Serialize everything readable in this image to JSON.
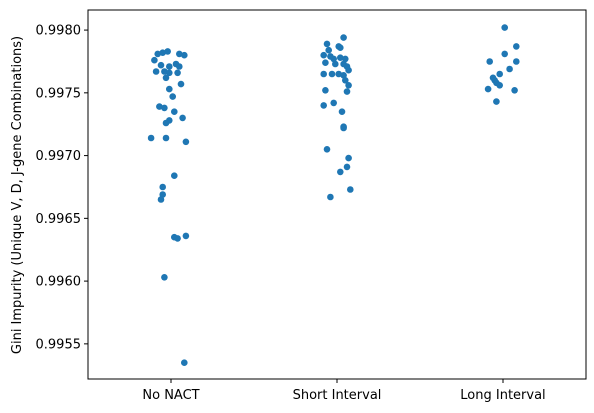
{
  "chart_data": {
    "type": "scatter",
    "title": "",
    "xlabel": "",
    "ylabel": "Gini Impurity (Unique V, D, J-gene Combinations)",
    "categories": [
      "No NACT",
      "Short Interval",
      "Long Interval"
    ],
    "ylim": [
      0.99522,
      0.99816
    ],
    "yticks": [
      0.9955,
      0.996,
      0.9965,
      0.997,
      0.9975,
      0.998
    ],
    "ytick_labels": [
      "0.9955",
      "0.9960",
      "0.9965",
      "0.9970",
      "0.9975",
      "0.9980"
    ],
    "grid": false,
    "legend": "none",
    "marker_color": "#1f77b4",
    "points": [
      {
        "category": "No NACT",
        "jitter": -0.1,
        "y": 0.99776
      },
      {
        "category": "No NACT",
        "jitter": -0.08,
        "y": 0.99781
      },
      {
        "category": "No NACT",
        "jitter": -0.05,
        "y": 0.99782
      },
      {
        "category": "No NACT",
        "jitter": -0.02,
        "y": 0.99783
      },
      {
        "category": "No NACT",
        "jitter": 0.05,
        "y": 0.99781
      },
      {
        "category": "No NACT",
        "jitter": 0.08,
        "y": 0.9978
      },
      {
        "category": "No NACT",
        "jitter": -0.06,
        "y": 0.99772
      },
      {
        "category": "No NACT",
        "jitter": -0.01,
        "y": 0.99771
      },
      {
        "category": "No NACT",
        "jitter": 0.03,
        "y": 0.99773
      },
      {
        "category": "No NACT",
        "jitter": 0.05,
        "y": 0.99771
      },
      {
        "category": "No NACT",
        "jitter": -0.09,
        "y": 0.99767
      },
      {
        "category": "No NACT",
        "jitter": -0.04,
        "y": 0.99767
      },
      {
        "category": "No NACT",
        "jitter": -0.01,
        "y": 0.99766
      },
      {
        "category": "No NACT",
        "jitter": 0.04,
        "y": 0.99766
      },
      {
        "category": "No NACT",
        "jitter": -0.03,
        "y": 0.99762
      },
      {
        "category": "No NACT",
        "jitter": 0.06,
        "y": 0.99757
      },
      {
        "category": "No NACT",
        "jitter": -0.01,
        "y": 0.99753
      },
      {
        "category": "No NACT",
        "jitter": 0.01,
        "y": 0.99747
      },
      {
        "category": "No NACT",
        "jitter": -0.07,
        "y": 0.99739
      },
      {
        "category": "No NACT",
        "jitter": -0.04,
        "y": 0.99738
      },
      {
        "category": "No NACT",
        "jitter": 0.02,
        "y": 0.99735
      },
      {
        "category": "No NACT",
        "jitter": 0.07,
        "y": 0.9973
      },
      {
        "category": "No NACT",
        "jitter": -0.01,
        "y": 0.99728
      },
      {
        "category": "No NACT",
        "jitter": -0.03,
        "y": 0.99726
      },
      {
        "category": "No NACT",
        "jitter": -0.12,
        "y": 0.99714
      },
      {
        "category": "No NACT",
        "jitter": -0.03,
        "y": 0.99714
      },
      {
        "category": "No NACT",
        "jitter": 0.09,
        "y": 0.99711
      },
      {
        "category": "No NACT",
        "jitter": 0.02,
        "y": 0.99684
      },
      {
        "category": "No NACT",
        "jitter": -0.05,
        "y": 0.99675
      },
      {
        "category": "No NACT",
        "jitter": -0.05,
        "y": 0.99669
      },
      {
        "category": "No NACT",
        "jitter": -0.06,
        "y": 0.99665
      },
      {
        "category": "No NACT",
        "jitter": 0.02,
        "y": 0.99635
      },
      {
        "category": "No NACT",
        "jitter": 0.04,
        "y": 0.99634
      },
      {
        "category": "No NACT",
        "jitter": 0.09,
        "y": 0.99636
      },
      {
        "category": "No NACT",
        "jitter": -0.04,
        "y": 0.99603
      },
      {
        "category": "No NACT",
        "jitter": 0.08,
        "y": 0.99535
      },
      {
        "category": "Short Interval",
        "jitter": 0.04,
        "y": 0.99794
      },
      {
        "category": "Short Interval",
        "jitter": -0.06,
        "y": 0.99789
      },
      {
        "category": "Short Interval",
        "jitter": 0.01,
        "y": 0.99787
      },
      {
        "category": "Short Interval",
        "jitter": 0.02,
        "y": 0.99786
      },
      {
        "category": "Short Interval",
        "jitter": -0.05,
        "y": 0.99784
      },
      {
        "category": "Short Interval",
        "jitter": -0.08,
        "y": 0.9978
      },
      {
        "category": "Short Interval",
        "jitter": -0.04,
        "y": 0.99779
      },
      {
        "category": "Short Interval",
        "jitter": -0.02,
        "y": 0.99777
      },
      {
        "category": "Short Interval",
        "jitter": 0.02,
        "y": 0.99778
      },
      {
        "category": "Short Interval",
        "jitter": 0.05,
        "y": 0.99777
      },
      {
        "category": "Short Interval",
        "jitter": -0.07,
        "y": 0.99774
      },
      {
        "category": "Short Interval",
        "jitter": -0.01,
        "y": 0.99773
      },
      {
        "category": "Short Interval",
        "jitter": 0.04,
        "y": 0.99773
      },
      {
        "category": "Short Interval",
        "jitter": 0.06,
        "y": 0.99771
      },
      {
        "category": "Short Interval",
        "jitter": 0.07,
        "y": 0.99768
      },
      {
        "category": "Short Interval",
        "jitter": -0.08,
        "y": 0.99765
      },
      {
        "category": "Short Interval",
        "jitter": -0.03,
        "y": 0.99765
      },
      {
        "category": "Short Interval",
        "jitter": 0.01,
        "y": 0.99765
      },
      {
        "category": "Short Interval",
        "jitter": 0.04,
        "y": 0.99764
      },
      {
        "category": "Short Interval",
        "jitter": 0.05,
        "y": 0.9976
      },
      {
        "category": "Short Interval",
        "jitter": 0.07,
        "y": 0.99756
      },
      {
        "category": "Short Interval",
        "jitter": 0.06,
        "y": 0.99751
      },
      {
        "category": "Short Interval",
        "jitter": -0.07,
        "y": 0.99752
      },
      {
        "category": "Short Interval",
        "jitter": -0.02,
        "y": 0.99742
      },
      {
        "category": "Short Interval",
        "jitter": -0.08,
        "y": 0.9974
      },
      {
        "category": "Short Interval",
        "jitter": 0.03,
        "y": 0.99735
      },
      {
        "category": "Short Interval",
        "jitter": 0.04,
        "y": 0.99723
      },
      {
        "category": "Short Interval",
        "jitter": 0.04,
        "y": 0.99722
      },
      {
        "category": "Short Interval",
        "jitter": -0.06,
        "y": 0.99705
      },
      {
        "category": "Short Interval",
        "jitter": 0.07,
        "y": 0.99698
      },
      {
        "category": "Short Interval",
        "jitter": 0.06,
        "y": 0.99691
      },
      {
        "category": "Short Interval",
        "jitter": 0.02,
        "y": 0.99687
      },
      {
        "category": "Short Interval",
        "jitter": 0.08,
        "y": 0.99673
      },
      {
        "category": "Short Interval",
        "jitter": -0.04,
        "y": 0.99667
      },
      {
        "category": "Long Interval",
        "jitter": 0.01,
        "y": 0.99802
      },
      {
        "category": "Long Interval",
        "jitter": 0.08,
        "y": 0.99787
      },
      {
        "category": "Long Interval",
        "jitter": 0.01,
        "y": 0.99781
      },
      {
        "category": "Long Interval",
        "jitter": -0.08,
        "y": 0.99775
      },
      {
        "category": "Long Interval",
        "jitter": 0.08,
        "y": 0.99775
      },
      {
        "category": "Long Interval",
        "jitter": 0.04,
        "y": 0.99769
      },
      {
        "category": "Long Interval",
        "jitter": -0.02,
        "y": 0.99765
      },
      {
        "category": "Long Interval",
        "jitter": -0.06,
        "y": 0.99762
      },
      {
        "category": "Long Interval",
        "jitter": -0.05,
        "y": 0.9976
      },
      {
        "category": "Long Interval",
        "jitter": -0.04,
        "y": 0.99758
      },
      {
        "category": "Long Interval",
        "jitter": -0.02,
        "y": 0.99756
      },
      {
        "category": "Long Interval",
        "jitter": -0.09,
        "y": 0.99753
      },
      {
        "category": "Long Interval",
        "jitter": 0.07,
        "y": 0.99752
      },
      {
        "category": "Long Interval",
        "jitter": -0.04,
        "y": 0.99743
      }
    ]
  }
}
